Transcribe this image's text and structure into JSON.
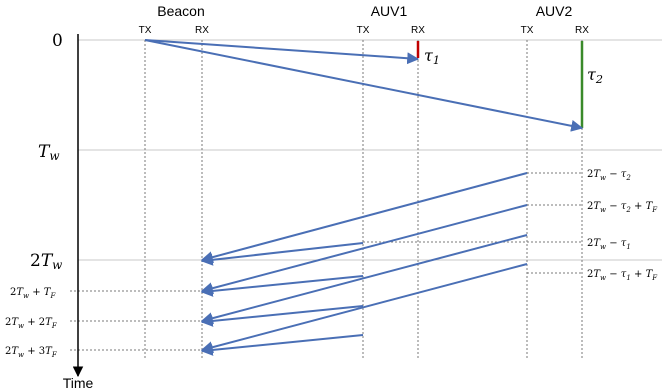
{
  "headers": {
    "beacon": "Beacon",
    "auv1": "AUV1",
    "auv2": "AUV2"
  },
  "column_labels": {
    "beacon_tx": "TX",
    "beacon_rx": "RX",
    "auv1_tx": "TX",
    "auv1_rx": "RX",
    "auv2_tx": "TX",
    "auv2_rx": "RX"
  },
  "time_axis": {
    "label": "Time",
    "ticks": [
      "0",
      "T_w",
      "2T_w"
    ],
    "left_labels": [
      "2T_w + T_F",
      "2T_w + 2T_F",
      "2T_w + 3T_F"
    ]
  },
  "delays": {
    "tau1": "τ_1",
    "tau2": "τ_2"
  },
  "right_labels": [
    "2T_w − τ_2",
    "2T_w − τ_2 + T_F",
    "2T_w − τ_1",
    "2T_w − τ_1 + T_F"
  ],
  "colors": {
    "arrow": "#4a6fb5",
    "tau1_bar": "#c00000",
    "tau2_bar": "#3a8a2a",
    "grid": "#c8c8c8",
    "dotted": "#7a7a7a"
  }
}
